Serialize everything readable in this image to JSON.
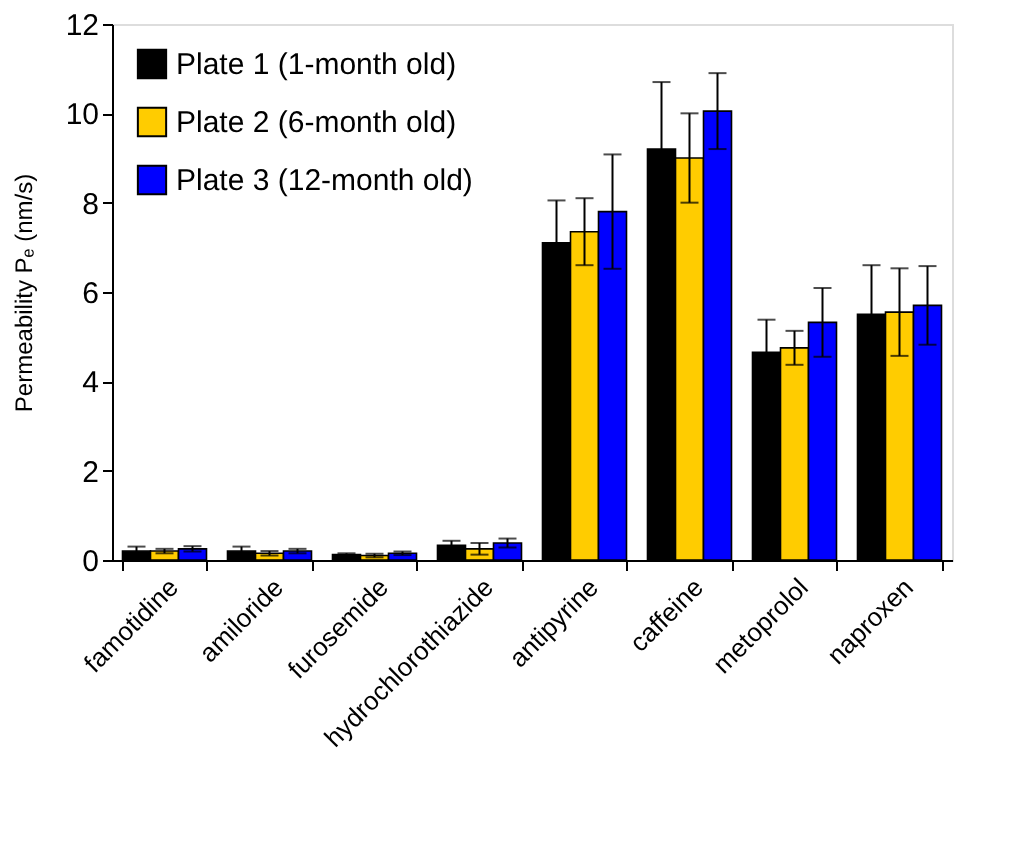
{
  "chart_data": {
    "type": "bar",
    "ylabel": "Permeability Pₑ (nm/s)",
    "categories": [
      "famotidine",
      "amiloride",
      "furosemide",
      "hydrochlorothiazide",
      "antipyrine",
      "caffeine",
      "metoprolol",
      "naproxen"
    ],
    "ylim": [
      0,
      12
    ],
    "yticks": [
      0,
      2,
      4,
      6,
      8,
      10,
      12
    ],
    "grid": false,
    "legend": "top left",
    "series": [
      {
        "name": "Plate 1 (1-month old)",
        "color": "#000000",
        "values": [
          0.2,
          0.2,
          0.12,
          0.33,
          7.1,
          9.2,
          4.65,
          5.5
        ],
        "errors": [
          0.1,
          0.1,
          0.03,
          0.1,
          0.95,
          1.5,
          0.73,
          1.1
        ]
      },
      {
        "name": "Plate 2 (6-month old)",
        "color": "#ffcc00",
        "values": [
          0.2,
          0.15,
          0.1,
          0.25,
          7.35,
          9.0,
          4.75,
          5.55
        ],
        "errors": [
          0.05,
          0.05,
          0.04,
          0.13,
          0.75,
          1.0,
          0.38,
          0.98
        ]
      },
      {
        "name": "Plate 3 (12-month old)",
        "color": "#0000ff",
        "values": [
          0.25,
          0.2,
          0.15,
          0.38,
          7.8,
          10.05,
          5.32,
          5.7
        ],
        "errors": [
          0.06,
          0.05,
          0.04,
          0.1,
          1.28,
          0.85,
          0.77,
          0.88
        ]
      }
    ]
  }
}
